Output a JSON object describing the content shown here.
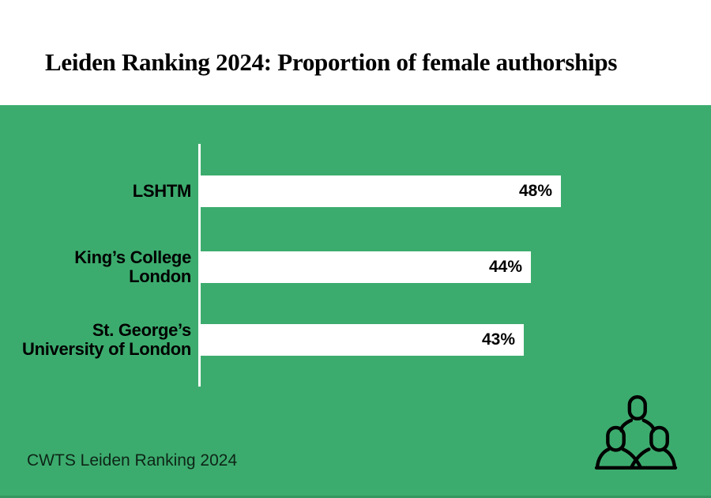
{
  "header": {
    "title": "Leiden Ranking 2024: Proportion of female authorships"
  },
  "chart_data": {
    "type": "bar",
    "orientation": "horizontal",
    "title": "Leiden Ranking 2024: Proportion of female authorships",
    "categories": [
      "LSHTM",
      "King’s College London",
      "St. George’s University of London"
    ],
    "category_line_breaks": [
      [
        "LSHTM"
      ],
      [
        "King’s College",
        "London"
      ],
      [
        "St. George’s",
        "University of London"
      ]
    ],
    "values": [
      48,
      44,
      43
    ],
    "value_labels": [
      "48%",
      "44%",
      "43%"
    ],
    "unit": "%",
    "xlim": [
      0,
      48
    ],
    "grid": false,
    "legend": false,
    "value_label_position": "inside-end",
    "source": "CWTS Leiden Ranking 2024"
  },
  "colors": {
    "panel_green": "#3CAC6E",
    "bar_fill": "#FFFFFF",
    "axis_line": "#FFFFFF",
    "text": "#000000"
  },
  "icons": {
    "people_group": "people-group-icon"
  }
}
